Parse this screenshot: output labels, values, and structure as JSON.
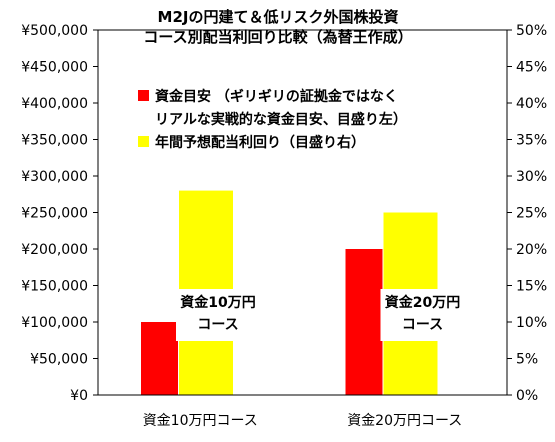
{
  "chart_data": {
    "type": "bar",
    "title_lines": [
      "M2Jの円建て＆低リスク外国株投資",
      "コース別配当利回り比較（為替王作成）"
    ],
    "categories": [
      "資金10万円コース",
      "資金20万円コース"
    ],
    "series": [
      {
        "name": "資金目安 （ギリギリの証拠金ではなくリアルな実戦的な資金目安、目盛り左）",
        "legend_lines": [
          "資金目安 （ギリギリの証拠金ではなく",
          "リアルな実戦的な資金目安、目盛り左）"
        ],
        "axis": "left",
        "values": [
          100000,
          200000
        ],
        "color": "#ff0000"
      },
      {
        "name": "年間予想配当利回り（目盛り右）",
        "legend_lines": [
          "年間予想配当利回り（目盛り右）"
        ],
        "axis": "right",
        "values": [
          28,
          25
        ],
        "color": "#ffff00"
      }
    ],
    "left_axis": {
      "min": 0,
      "max": 500000,
      "step": 50000,
      "tick_labels": [
        "¥0",
        "¥50,000",
        "¥100,000",
        "¥150,000",
        "¥200,000",
        "¥250,000",
        "¥300,000",
        "¥350,000",
        "¥400,000",
        "¥450,000",
        "¥500,000"
      ]
    },
    "right_axis": {
      "min": 0,
      "max": 50,
      "step": 5,
      "tick_labels": [
        "0%",
        "5%",
        "10%",
        "15%",
        "20%",
        "25%",
        "30%",
        "35%",
        "40%",
        "45%",
        "50%"
      ]
    },
    "annotations": [
      {
        "lines": [
          "資金10万円",
          "コース"
        ],
        "category": 0
      },
      {
        "lines": [
          "資金20万円",
          "コース"
        ],
        "category": 1
      }
    ],
    "grid": false,
    "legend_position": "top-left"
  },
  "colors": {
    "plot_border": "#000000",
    "background": "#ffffff"
  }
}
